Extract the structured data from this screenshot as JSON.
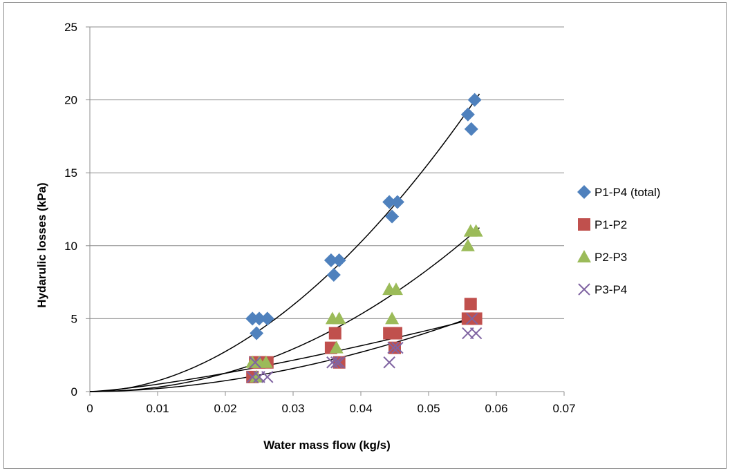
{
  "chart_data": {
    "type": "scatter",
    "xlabel": "Water  mass flow (kg/s)",
    "ylabel": "Hydarulic losses (kPa)",
    "xlim": [
      0,
      0.07
    ],
    "ylim": [
      0,
      25
    ],
    "x_ticks": [
      "0",
      "0.01",
      "0.02",
      "0.03",
      "0.04",
      "0.05",
      "0.06",
      "0.07"
    ],
    "y_ticks": [
      "0",
      "5",
      "10",
      "15",
      "20",
      "25"
    ],
    "grid": "horizontal",
    "legend_position": "right",
    "series": [
      {
        "name": "P1-P4 (total)",
        "marker": "diamond",
        "color": "#4f81bd",
        "points": [
          [
            0.024,
            5
          ],
          [
            0.0246,
            4
          ],
          [
            0.025,
            5
          ],
          [
            0.0262,
            5
          ],
          [
            0.0356,
            9
          ],
          [
            0.036,
            8
          ],
          [
            0.0368,
            9
          ],
          [
            0.0442,
            13
          ],
          [
            0.0446,
            12
          ],
          [
            0.0454,
            13
          ],
          [
            0.0558,
            19
          ],
          [
            0.0563,
            18
          ],
          [
            0.0568,
            20
          ]
        ],
        "trend": {
          "type": "power",
          "a": 4640,
          "b": 1.9
        }
      },
      {
        "name": "P1-P2",
        "marker": "square",
        "color": "#c0504d",
        "points": [
          [
            0.024,
            1
          ],
          [
            0.0244,
            2
          ],
          [
            0.025,
            2
          ],
          [
            0.0262,
            2
          ],
          [
            0.0356,
            3
          ],
          [
            0.0362,
            4
          ],
          [
            0.0368,
            2
          ],
          [
            0.0442,
            4
          ],
          [
            0.045,
            3
          ],
          [
            0.0452,
            4
          ],
          [
            0.0558,
            5
          ],
          [
            0.0562,
            6
          ],
          [
            0.057,
            5
          ]
        ],
        "trend": {
          "type": "power",
          "a": 220,
          "b": 1.32
        }
      },
      {
        "name": "P2-P3",
        "marker": "triangle",
        "color": "#9bbb59",
        "points": [
          [
            0.024,
            2
          ],
          [
            0.0246,
            1
          ],
          [
            0.025,
            2
          ],
          [
            0.026,
            2
          ],
          [
            0.0358,
            5
          ],
          [
            0.0364,
            3
          ],
          [
            0.0368,
            5
          ],
          [
            0.0442,
            7
          ],
          [
            0.0446,
            5
          ],
          [
            0.0452,
            7
          ],
          [
            0.0558,
            10
          ],
          [
            0.0562,
            11
          ],
          [
            0.057,
            11
          ]
        ],
        "trend": {
          "type": "power",
          "a": 4150,
          "b": 2.07
        }
      },
      {
        "name": "P3-P4",
        "marker": "x",
        "color": "#8064a2",
        "points": [
          [
            0.024,
            1
          ],
          [
            0.0244,
            2
          ],
          [
            0.025,
            1
          ],
          [
            0.0262,
            1
          ],
          [
            0.0358,
            2
          ],
          [
            0.0364,
            2
          ],
          [
            0.0368,
            2
          ],
          [
            0.0442,
            2
          ],
          [
            0.0448,
            3
          ],
          [
            0.0454,
            3
          ],
          [
            0.0558,
            4
          ],
          [
            0.0564,
            5
          ],
          [
            0.057,
            4
          ]
        ],
        "trend": {
          "type": "power",
          "a": 1040,
          "b": 1.85
        }
      }
    ]
  }
}
